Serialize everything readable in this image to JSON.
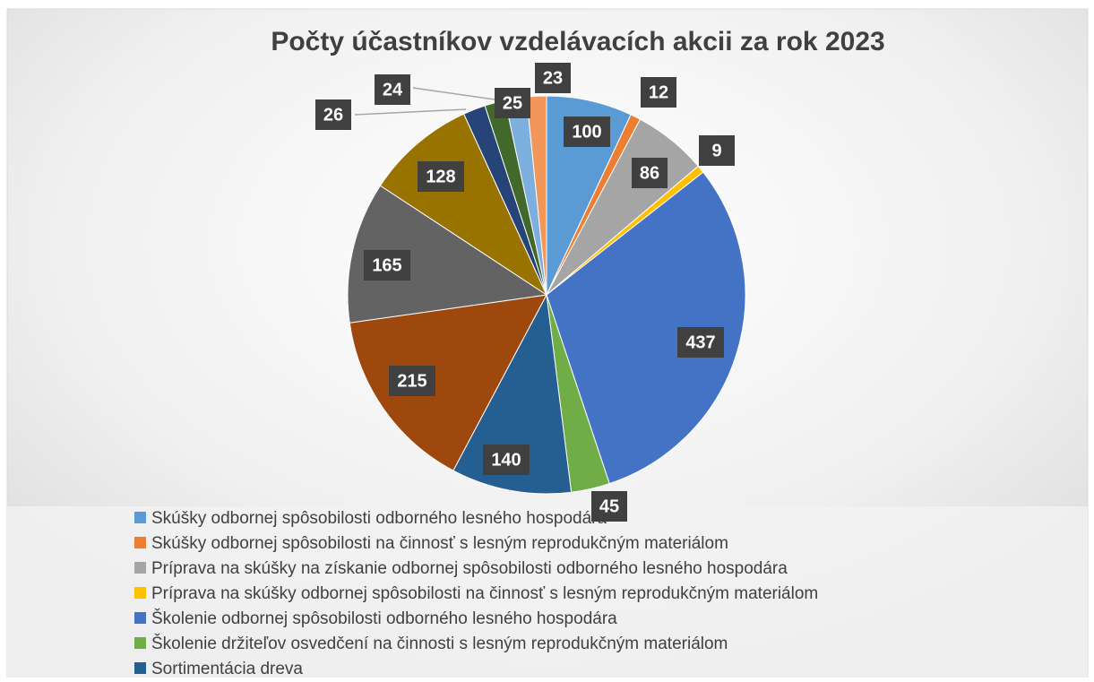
{
  "chart_data": {
    "type": "pie",
    "title": "Počty účastníkov vzdelávacích akcii za rok 2023",
    "categories": [
      "Skúšky odbornej spôsobilosti odborného lesného hospodára",
      "Skúšky odbornej spôsobilosti na činnosť s lesným reprodukčným materiálom",
      "Príprava na skúšky na získanie odbornej spôsobilosti odborného lesného hospodára",
      "Príprava na skúšky odbornej spôsobilosti na činnosť s lesným reprodukčným materiálom",
      "Školenie odbornej spôsobilosti odborného lesného hospodára",
      "Školenie držiteľov osvedčení na činnosti s lesným reprodukčným materiálom",
      "Sortimentácia dreva",
      null,
      null,
      null,
      null,
      null,
      null,
      null
    ],
    "values": [
      100,
      12,
      86,
      9,
      437,
      45,
      140,
      215,
      165,
      128,
      26,
      24,
      25,
      23
    ],
    "colors": [
      "#5b9bd5",
      "#ed7d31",
      "#a5a5a5",
      "#ffc000",
      "#4472c4",
      "#70ad47",
      "#255e91",
      "#9e480e",
      "#636363",
      "#997300",
      "#264478",
      "#43682b",
      "#7cafdd",
      "#f1975a"
    ],
    "legend": "bottom"
  }
}
